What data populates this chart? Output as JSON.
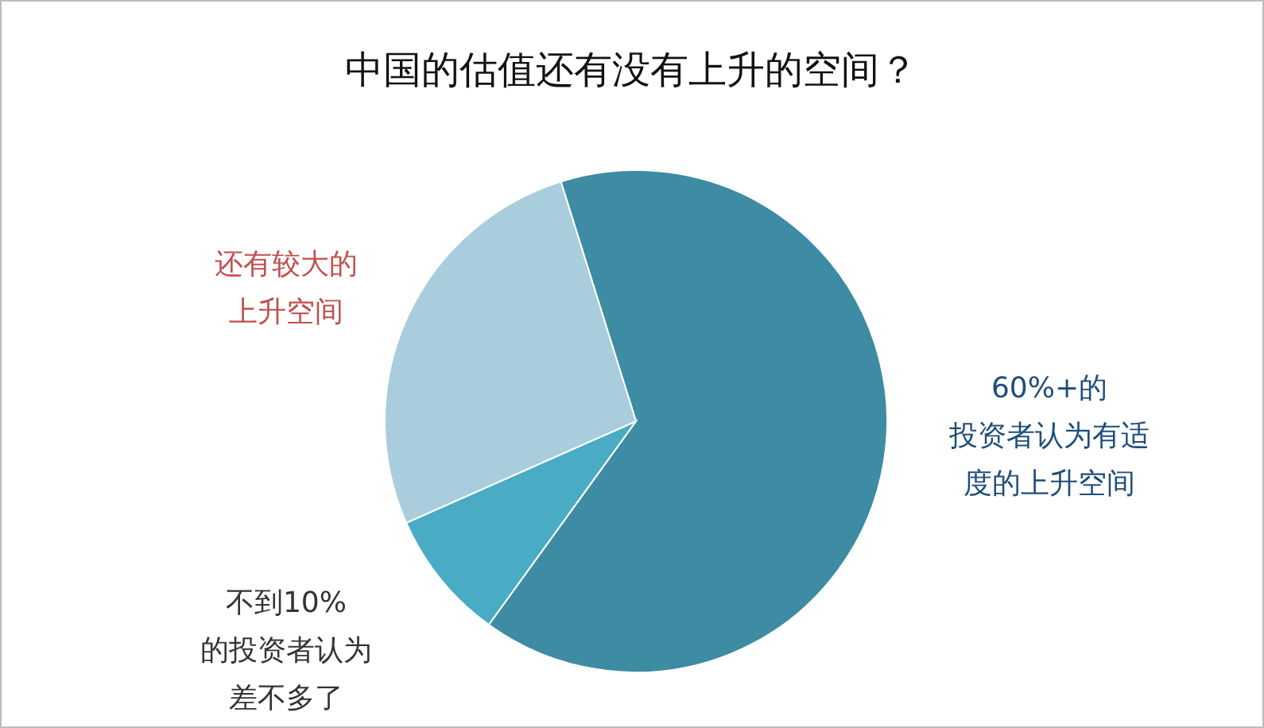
{
  "chart_data": {
    "type": "pie",
    "title": "中国的估值还有没有上升的空间？",
    "categories": [
      "60%+的投资者认为有适度的上升空间",
      "不到10%的投资者认为差不多了",
      "还有较大的上升空间"
    ],
    "values": [
      64.8,
      8.4,
      26.8
    ],
    "colors": [
      "#3d8ca3",
      "#4aabc4",
      "#a9cddc"
    ]
  }
}
